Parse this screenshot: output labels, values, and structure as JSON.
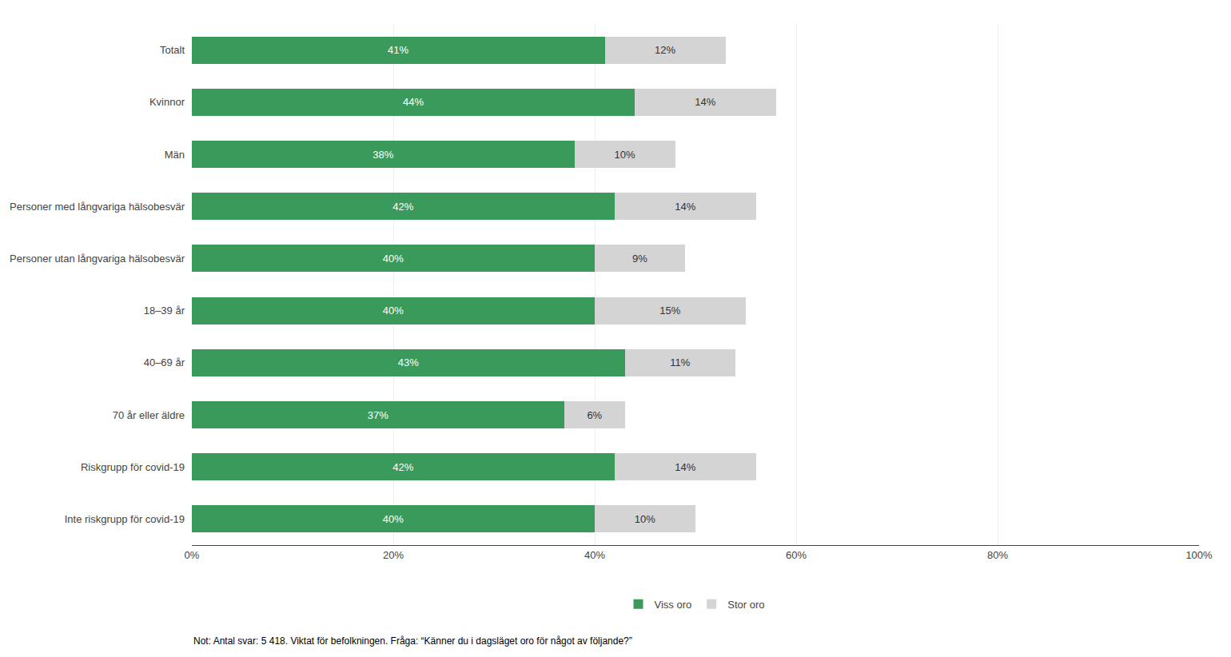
{
  "chart_data": {
    "type": "bar",
    "orientation": "horizontal",
    "stacked": true,
    "categories": [
      "Totalt",
      "Kvinnor",
      "Män",
      "Personer med långvariga hälsobesvär",
      "Personer utan långvariga hälsobesvär",
      "18–39 år",
      "40–69 år",
      "70 år eller äldre",
      "Riskgrupp för covid-19",
      "Inte riskgrupp för covid-19"
    ],
    "series": [
      {
        "name": "Viss oro",
        "color": "#3a9a5c",
        "values": [
          41,
          44,
          38,
          42,
          40,
          40,
          43,
          37,
          42,
          40
        ],
        "value_labels": [
          "41%",
          "44%",
          "38%",
          "42%",
          "40%",
          "40%",
          "43%",
          "37%",
          "42%",
          "40%"
        ]
      },
      {
        "name": "Stor oro",
        "color": "#d4d4d4",
        "values": [
          12,
          14,
          10,
          14,
          9,
          15,
          11,
          6,
          14,
          10
        ],
        "value_labels": [
          "12%",
          "14%",
          "10%",
          "14%",
          "9%",
          "15%",
          "11%",
          "6%",
          "14%",
          "10%"
        ]
      }
    ],
    "xlim": [
      0,
      100
    ],
    "xticks": [
      {
        "value": 0,
        "label": "0%"
      },
      {
        "value": 20,
        "label": "20%"
      },
      {
        "value": 40,
        "label": "40%"
      },
      {
        "value": 60,
        "label": "60%"
      },
      {
        "value": 80,
        "label": "80%"
      },
      {
        "value": 100,
        "label": "100%"
      }
    ],
    "grid": true,
    "legend": "bottom",
    "data_labels": true,
    "annotations": [
      "Not: Antal svar: 5 418. Viktat för befolkningen. Fråga: “Känner du i dagsläget oro för något av följande?”"
    ]
  }
}
